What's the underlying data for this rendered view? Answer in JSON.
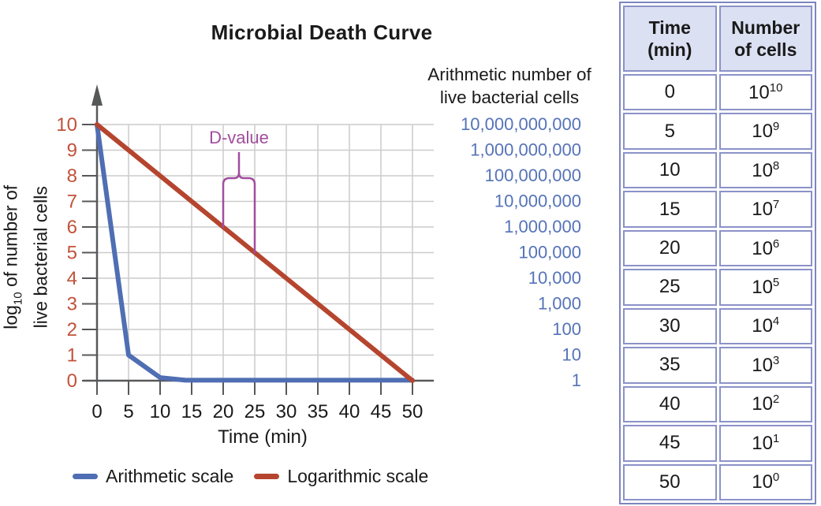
{
  "chart_data": {
    "type": "line",
    "title": "Microbial Death Curve",
    "xlabel": "Time (min)",
    "ylabel": "log10 of number of live bacterial cells",
    "xlim": [
      0,
      50
    ],
    "ylim": [
      0,
      10
    ],
    "grid": true,
    "x_ticks": [
      0,
      5,
      10,
      15,
      20,
      25,
      30,
      35,
      40,
      45,
      50
    ],
    "y_ticks": [
      0,
      1,
      2,
      3,
      4,
      5,
      6,
      7,
      8,
      9,
      10
    ],
    "series": [
      {
        "name": "Arithmetic scale",
        "color": "#4f6eb3",
        "x": [
          0,
          5,
          10,
          14,
          50
        ],
        "y": [
          10,
          1,
          0.12,
          0.02,
          0.02
        ]
      },
      {
        "name": "Logarithmic scale",
        "color": "#b5452e",
        "x": [
          0,
          50
        ],
        "y": [
          10,
          0
        ]
      }
    ],
    "annotation": {
      "label": "D-value",
      "color": "#a14d9e",
      "x1": 20,
      "y1": 6,
      "x2": 25,
      "y2": 5
    },
    "right_axis": {
      "title_line1": "Arithmetic number of",
      "title_line2": "live bacterial cells",
      "labels": [
        "10,000,000,000",
        "1,000,000,000",
        "100,000,000",
        "10,000,000",
        "1,000,000",
        "100,000",
        "10,000",
        "1,000",
        "100",
        "10",
        "1"
      ],
      "label_color": "#5573b8"
    },
    "colors": {
      "grid": "#cccccc",
      "axis": "#57585a",
      "y_tick_label": "#c1523b",
      "x_tick_label": "#1a1a1a"
    }
  },
  "y_axis_label": {
    "pre": "log",
    "sub": "10",
    "post": " of number of",
    "line2": "live bacterial cells"
  },
  "legend": [
    {
      "label": "Arithmetic scale",
      "color": "#4f6eb3"
    },
    {
      "label": "Logarithmic scale",
      "color": "#b5452e"
    }
  ],
  "table": {
    "headers": [
      "Time (min)",
      "Number of cells"
    ],
    "base": "10",
    "rows": [
      {
        "time": "0",
        "exp": "10"
      },
      {
        "time": "5",
        "exp": "9"
      },
      {
        "time": "10",
        "exp": "8"
      },
      {
        "time": "15",
        "exp": "7"
      },
      {
        "time": "20",
        "exp": "6"
      },
      {
        "time": "25",
        "exp": "5"
      },
      {
        "time": "30",
        "exp": "4"
      },
      {
        "time": "35",
        "exp": "3"
      },
      {
        "time": "40",
        "exp": "2"
      },
      {
        "time": "45",
        "exp": "1"
      },
      {
        "time": "50",
        "exp": "0"
      }
    ]
  }
}
